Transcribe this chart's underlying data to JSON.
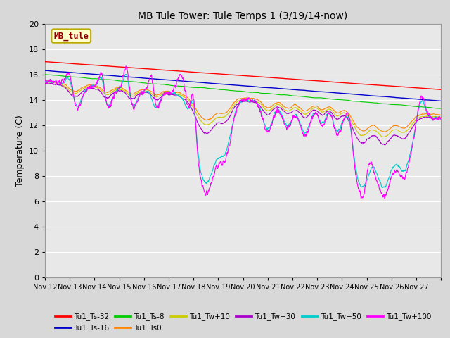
{
  "title": "MB Tule Tower: Tule Temps 1 (3/19/14-now)",
  "ylabel": "Temperature (C)",
  "ylim": [
    0,
    20
  ],
  "yticks": [
    0,
    2,
    4,
    6,
    8,
    10,
    12,
    14,
    16,
    18,
    20
  ],
  "fig_bg": "#d8d8d8",
  "plot_bg": "#e8e8e8",
  "legend_label": "MB_tule",
  "legend_box_fc": "#ffffcc",
  "legend_box_ec": "#bbaa00",
  "legend_text_color": "#880000",
  "series": [
    {
      "label": "Tu1_Ts-32",
      "color": "#ff0000"
    },
    {
      "label": "Tu1_Ts-16",
      "color": "#0000cc"
    },
    {
      "label": "Tu1_Ts-8",
      "color": "#00cc00"
    },
    {
      "label": "Tu1_Ts0",
      "color": "#ff8800"
    },
    {
      "label": "Tu1_Tw+10",
      "color": "#cccc00"
    },
    {
      "label": "Tu1_Tw+30",
      "color": "#aa00cc"
    },
    {
      "label": "Tu1_Tw+50",
      "color": "#00cccc"
    },
    {
      "label": "Tu1_Tw+100",
      "color": "#ff00ff"
    }
  ],
  "xticklabels": [
    "Nov 12",
    "Nov 13",
    "Nov 14",
    "Nov 15",
    "Nov 16",
    "Nov 17",
    "Nov 18",
    "Nov 19",
    "Nov 20",
    "Nov 21",
    "Nov 22",
    "Nov 23",
    "Nov 24",
    "Nov 25",
    "Nov 26",
    "Nov 27"
  ],
  "num_days": 16
}
